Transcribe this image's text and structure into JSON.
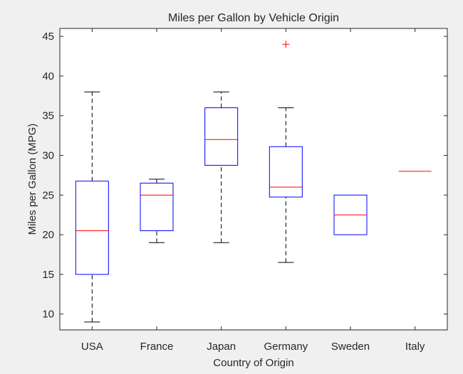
{
  "chart_data": {
    "type": "box",
    "title": "Miles per Gallon by Vehicle Origin",
    "xlabel": "Country of Origin",
    "ylabel": "Miles per Gallon (MPG)",
    "ylim": [
      8,
      46
    ],
    "yticks": [
      10,
      15,
      20,
      25,
      30,
      35,
      40,
      45
    ],
    "grid": false,
    "categories": [
      "USA",
      "France",
      "Japan",
      "Germany",
      "Sweden",
      "Italy"
    ],
    "boxes": [
      {
        "category": "USA",
        "min": 9,
        "q1": 15,
        "median": 20.5,
        "q3": 26.75,
        "max": 38,
        "outliers": []
      },
      {
        "category": "France",
        "min": 19,
        "q1": 20.5,
        "median": 25,
        "q3": 26.5,
        "max": 27,
        "outliers": []
      },
      {
        "category": "Japan",
        "min": 19,
        "q1": 28.75,
        "median": 32,
        "q3": 36,
        "max": 38,
        "outliers": []
      },
      {
        "category": "Germany",
        "min": 16.5,
        "q1": 24.75,
        "median": 26,
        "q3": 31.1,
        "max": 36,
        "outliers": [
          44
        ]
      },
      {
        "category": "Sweden",
        "min": 20,
        "q1": 20,
        "median": 22.5,
        "q3": 25,
        "max": 25,
        "outliers": []
      },
      {
        "category": "Italy",
        "min": 28,
        "q1": 28,
        "median": 28,
        "q3": 28,
        "max": 28,
        "outliers": []
      }
    ],
    "colors": {
      "box": "#0000ff",
      "median": "#ff0000",
      "whisker": "#000000",
      "outlier": "#ff0000",
      "axes": "#262626",
      "plot_bg": "#ffffff",
      "figure_bg": "#f0f0f0"
    }
  }
}
